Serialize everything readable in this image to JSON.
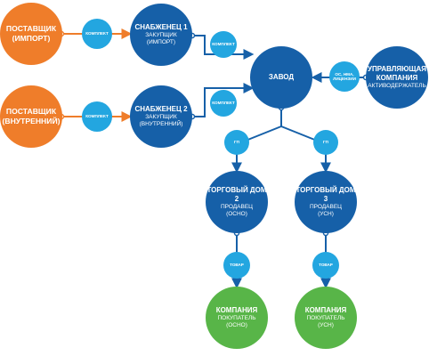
{
  "colors": {
    "supplier": "#ef7d2a",
    "main": "#1660a8",
    "buyer": "#58b548",
    "badge": "#23a6e0",
    "line_orange": "#ef7d2a",
    "line_blue": "#1660a8"
  },
  "nodes": {
    "supplier_import": {
      "title_line1": "ПОСТАВЩИК",
      "title_line2": "(ИМПОРТ)"
    },
    "supplier_domestic": {
      "title_line1": "ПОСТАВЩИК",
      "title_line2": "(ВНУТРЕННИЙ)"
    },
    "procurer_1": {
      "title": "СНАБЖЕНЕЦ 1",
      "role_line1": "ЗАКУПЩИК",
      "role_line2": "(ИМПОРТ)"
    },
    "procurer_2": {
      "title": "СНАБЖЕНЕЦ 2",
      "role_line1": "ЗАКУПЩИК",
      "role_line2": "(ВНУТРЕННИЙ)"
    },
    "factory": {
      "title": "ЗАВОД"
    },
    "management": {
      "title_line1": "УПРАВЛЯЮЩАЯ",
      "title_line2": "КОМПАНИЯ",
      "role": "АКТИВОДЕРЖАТЕЛЬ"
    },
    "trading_house_2": {
      "title": "ТОРГОВЫЙ ДОМ 2",
      "role_line1": "ПРОДАВЕЦ",
      "role_line2": "(ОСНО)"
    },
    "trading_house_3": {
      "title": "ТОРГОВЫЙ ДОМ 3",
      "role_line1": "ПРОДАВЕЦ",
      "role_line2": "(УСН)"
    },
    "buyer_osno": {
      "title": "КОМПАНИЯ",
      "role_line1": "ПОКУПАТЕЛЬ",
      "role_line2": "(ОСНО)"
    },
    "buyer_usn": {
      "title": "КОМПАНИЯ",
      "role_line1": "ПОКУПАТЕЛЬ",
      "role_line2": "(УСН)"
    }
  },
  "badges": {
    "komplekt_top": "КОМПЛЕКТ",
    "komplekt_bottom": "КОМПЛЕКТ",
    "komplekt_to_factory_top": "КОМПЛЕКТ",
    "komplekt_to_factory_bottom": "КОМПЛЕКТ",
    "os_nma_line1": "ОС, НМА,",
    "os_nma_line2": "ЛИЦЕНЗИИ",
    "gp_left": "ГП",
    "gp_right": "ГП",
    "tovar_left": "ТОВАР",
    "tovar_right": "ТОВАР"
  }
}
